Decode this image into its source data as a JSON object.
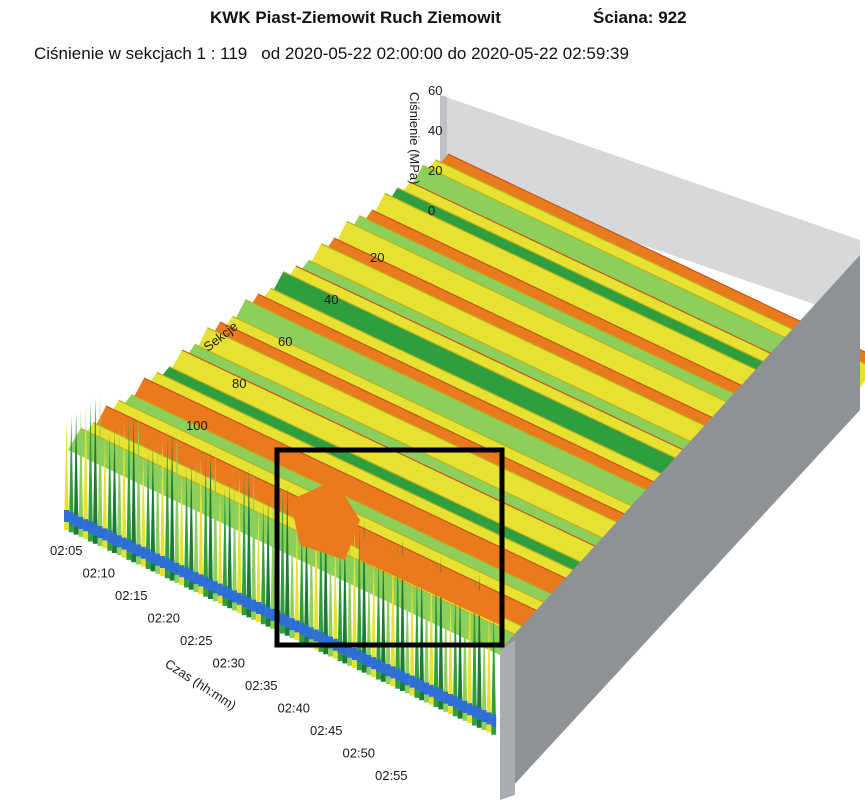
{
  "chart_data": {
    "type": "surface3d",
    "title": "KWK Piast-Ziemowit Ruch Ziemowit",
    "title_right": "Ściana: 922",
    "subtitle_left": "Ciśnienie w sekcjach 1 : 119",
    "subtitle_right": "od 2020-05-22 02:00:00 do 2020-05-22 02:59:39",
    "z_axis": {
      "label": "Ciśnienie (MPa)",
      "ticks": [
        "60",
        "40",
        "20",
        "0"
      ],
      "range": [
        0,
        60
      ]
    },
    "sections_axis": {
      "label": "Sekcje",
      "ticks": [
        "20",
        "40",
        "60",
        "80",
        "100"
      ],
      "range": [
        1,
        119
      ]
    },
    "time_axis": {
      "label": "Czas (hh:mm)",
      "ticks": [
        "02:05",
        "02:10",
        "02:15",
        "02:20",
        "02:25",
        "02:30",
        "02:35",
        "02:40",
        "02:45",
        "02:50",
        "02:55"
      ]
    },
    "colors": {
      "low": "#2e6fd6",
      "mid_low": "#2f9e3f",
      "mid": "#8ccf5a",
      "mid_high": "#e7e232",
      "high": "#ea7a1e"
    },
    "highlight": "box around sections approx. 75–110, time approx. 02:25–02:45"
  }
}
